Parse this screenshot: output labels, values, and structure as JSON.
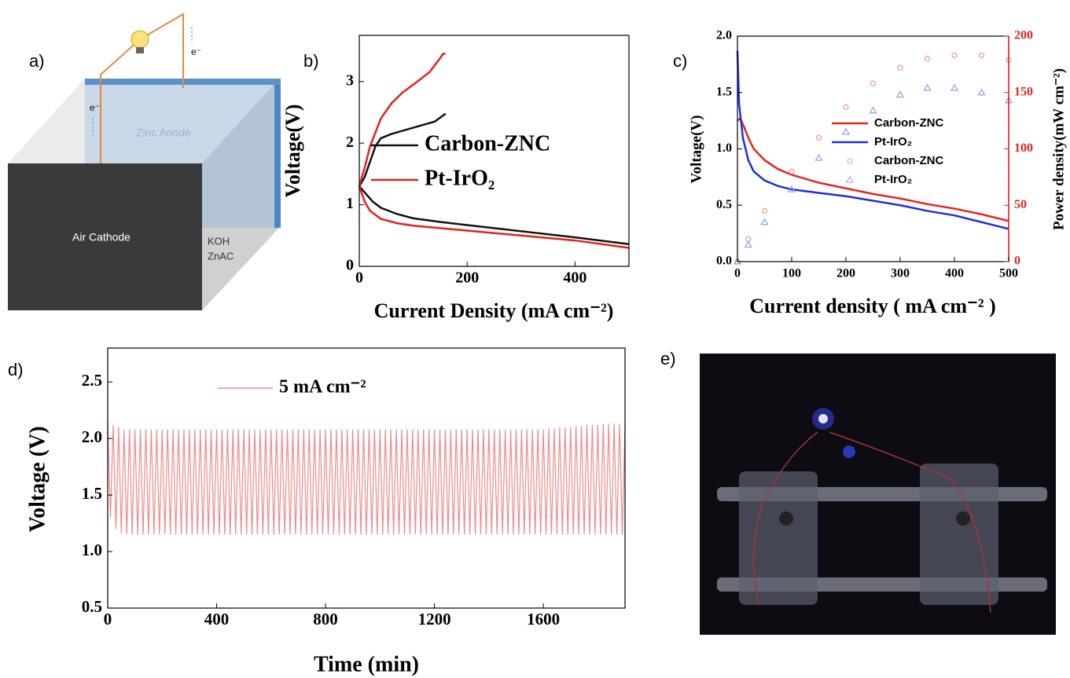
{
  "panels": {
    "a": "a)",
    "b": "b)",
    "c": "c)",
    "d": "d)",
    "e": "e)"
  },
  "diagram": {
    "anode": "Zinc Anode",
    "cathode": "Air Cathode",
    "electrolyte": [
      "KOH",
      "ZnAC"
    ],
    "electron_labels": [
      "e⁻",
      "e⁻"
    ]
  },
  "chart_data": [
    {
      "type": "line",
      "x_label": "Current Density (mA cm⁻²)",
      "y_label": "Voltage(V)",
      "xlim": [
        0,
        500
      ],
      "xticks": [
        0,
        200,
        400
      ],
      "ylim": [
        0,
        3.75
      ],
      "yticks": [
        0,
        1,
        2,
        3
      ],
      "series": [
        {
          "name": "Carbon-ZNC",
          "color": "#111111",
          "x": [
            0,
            10,
            25,
            40,
            70,
            100,
            150,
            200,
            300,
            400,
            500,
            null,
            0,
            10,
            20,
            30,
            40,
            60,
            100,
            140,
            160
          ],
          "values": [
            1.3,
            1.2,
            1.05,
            0.95,
            0.85,
            0.78,
            0.72,
            0.67,
            0.57,
            0.47,
            0.36,
            null,
            1.3,
            1.45,
            1.7,
            1.95,
            2.08,
            2.15,
            2.25,
            2.35,
            2.48
          ]
        },
        {
          "name": "Pt-IrO₂",
          "color": "#e3211c",
          "x": [
            0,
            10,
            20,
            40,
            70,
            100,
            200,
            300,
            400,
            500,
            null,
            0,
            10,
            20,
            40,
            60,
            80,
            100,
            130,
            150,
            155,
            160
          ],
          "values": [
            1.3,
            1.05,
            0.9,
            0.77,
            0.7,
            0.66,
            0.58,
            0.5,
            0.42,
            0.3,
            null,
            1.3,
            1.6,
            1.95,
            2.4,
            2.65,
            2.82,
            2.95,
            3.15,
            3.38,
            3.45,
            3.45
          ]
        }
      ]
    },
    {
      "type": "line",
      "x_label": "Current density ( mA cm⁻² )",
      "y_label": "Voltage(V)",
      "y2_label": "Power density(mW cm⁻²)",
      "y2_color": "#e8231f",
      "xlim": [
        0,
        500
      ],
      "xticks": [
        0,
        100,
        200,
        300,
        400,
        500
      ],
      "ylim": [
        0,
        2.0
      ],
      "yticks": [
        {
          "value": 0,
          "label": "0.0"
        },
        0.5,
        {
          "value": 1,
          "label": "1.0"
        },
        1.5,
        {
          "value": 2,
          "label": "2.0"
        }
      ],
      "y2lim": [
        0,
        200
      ],
      "y2ticks": [
        0,
        50,
        100,
        150,
        200
      ],
      "series": [
        {
          "name": "Carbon-ZNC",
          "color": "#e8231f",
          "x": [
            0,
            5,
            10,
            20,
            30,
            50,
            75,
            100,
            150,
            200,
            250,
            300,
            350,
            400,
            450,
            500
          ],
          "values": [
            1.25,
            1.27,
            1.22,
            1.1,
            1.0,
            0.9,
            0.82,
            0.77,
            0.7,
            0.65,
            0.6,
            0.56,
            0.51,
            0.47,
            0.42,
            0.36
          ]
        },
        {
          "name": "Pt-IrO₂",
          "color": "#1c2ee0",
          "x": [
            0,
            3,
            10,
            20,
            30,
            50,
            75,
            100,
            150,
            200,
            250,
            300,
            350,
            400,
            450,
            500
          ],
          "values": [
            1.87,
            1.4,
            1.1,
            0.9,
            0.8,
            0.72,
            0.67,
            0.64,
            0.61,
            0.58,
            0.54,
            0.5,
            0.45,
            0.41,
            0.35,
            0.29
          ]
        },
        {
          "name": "Carbon-ZNC",
          "color": "#f29a9a",
          "marker": "circle",
          "axis": "y2",
          "x": [
            0,
            20,
            50,
            100,
            150,
            200,
            250,
            300,
            350,
            400,
            450,
            500
          ],
          "values": [
            0,
            20,
            45,
            80,
            110,
            137,
            158,
            172,
            180,
            183,
            183,
            179
          ]
        },
        {
          "name": "Pt-IrO₂",
          "color": "#96a3ee",
          "marker": "triangle",
          "axis": "y2",
          "x": [
            0,
            20,
            50,
            100,
            150,
            200,
            250,
            300,
            350,
            400,
            450,
            500
          ],
          "values": [
            0,
            15,
            35,
            64,
            92,
            115,
            134,
            148,
            154,
            154,
            150,
            143
          ]
        }
      ]
    },
    {
      "type": "line",
      "x_label": "Time (min)",
      "y_label": "Voltage (V)",
      "xlim": [
        0,
        1900
      ],
      "xticks": [
        0,
        400,
        800,
        1200,
        1600
      ],
      "ylim": [
        0.5,
        2.8
      ],
      "yticks": [
        0.5,
        {
          "value": 1,
          "label": "1.0"
        },
        1.5,
        {
          "value": 2,
          "label": "2.0"
        },
        2.5
      ],
      "series": [
        {
          "name": "5 mA cm⁻²",
          "color": "#f08a8a",
          "x": [
            0,
            10,
            20,
            30,
            40,
            50,
            60,
            70,
            80,
            90,
            100,
            110,
            120,
            130,
            140,
            150,
            160,
            170,
            180,
            190,
            200,
            210,
            220,
            230,
            240,
            250,
            260,
            270,
            280,
            290,
            300,
            310,
            320,
            330,
            340,
            350,
            360,
            370,
            380,
            390,
            400,
            410,
            420,
            430,
            440,
            450,
            460,
            470,
            480,
            490,
            500,
            510,
            520,
            530,
            540,
            550,
            560,
            570,
            580,
            590,
            600,
            610,
            620,
            630,
            640,
            650,
            660,
            670,
            680,
            690,
            700,
            710,
            720,
            730,
            740,
            750,
            760,
            770,
            780,
            790,
            800,
            810,
            820,
            830,
            840,
            850,
            860,
            870,
            880,
            890,
            900,
            910,
            920,
            930,
            940,
            950,
            960,
            970,
            980,
            990,
            1000,
            1010,
            1020,
            1030,
            1040,
            1050,
            1060,
            1070,
            1080,
            1090,
            1100,
            1110,
            1120,
            1130,
            1140,
            1150,
            1160,
            1170,
            1180,
            1190,
            1200,
            1210,
            1220,
            1230,
            1240,
            1250,
            1260,
            1270,
            1280,
            1290,
            1300,
            1310,
            1320,
            1330,
            1340,
            1350,
            1360,
            1370,
            1380,
            1390,
            1400,
            1410,
            1420,
            1430,
            1440,
            1450,
            1460,
            1470,
            1480,
            1490,
            1500,
            1510,
            1520,
            1530,
            1540,
            1550,
            1560,
            1570,
            1580,
            1590,
            1600,
            1610,
            1620,
            1630,
            1640,
            1650,
            1660,
            1670,
            1680,
            1690,
            1700,
            1710,
            1720,
            1730,
            1740,
            1750,
            1760,
            1770,
            1780,
            1790,
            1800,
            1810,
            1820,
            1830,
            1840,
            1850,
            1860,
            1870,
            1880,
            1890,
            1900
          ],
          "values": [
            2.17,
            1.3,
            2.12,
            1.2,
            2.1,
            1.16,
            2.08,
            1.15,
            2.08,
            1.15,
            2.08,
            1.15,
            2.08,
            1.15,
            2.08,
            1.15,
            2.08,
            1.15,
            2.08,
            1.15,
            2.08,
            1.15,
            2.08,
            1.15,
            2.08,
            1.15,
            2.08,
            1.15,
            2.08,
            1.15,
            2.08,
            1.15,
            2.08,
            1.15,
            2.08,
            1.15,
            2.08,
            1.15,
            2.08,
            1.15,
            2.08,
            1.15,
            2.08,
            1.15,
            2.08,
            1.15,
            2.08,
            1.15,
            2.08,
            1.15,
            2.08,
            1.15,
            2.08,
            1.15,
            2.08,
            1.15,
            2.08,
            1.15,
            2.08,
            1.15,
            2.08,
            1.15,
            2.08,
            1.15,
            2.08,
            1.15,
            2.08,
            1.15,
            2.08,
            1.15,
            2.08,
            1.15,
            2.08,
            1.15,
            2.08,
            1.15,
            2.08,
            1.15,
            2.08,
            1.15,
            2.08,
            1.15,
            2.08,
            1.15,
            2.08,
            1.15,
            2.08,
            1.15,
            2.08,
            1.15,
            2.08,
            1.15,
            2.08,
            1.15,
            2.08,
            1.15,
            2.08,
            1.15,
            2.08,
            1.15,
            2.08,
            1.15,
            2.08,
            1.15,
            2.08,
            1.15,
            2.08,
            1.15,
            2.08,
            1.15,
            2.08,
            1.15,
            2.08,
            1.15,
            2.08,
            1.15,
            2.08,
            1.15,
            2.08,
            1.15,
            2.08,
            1.15,
            2.08,
            1.15,
            2.08,
            1.15,
            2.08,
            1.15,
            2.08,
            1.15,
            2.08,
            1.15,
            2.08,
            1.15,
            2.08,
            1.15,
            2.08,
            1.15,
            2.08,
            1.15,
            2.08,
            1.15,
            2.08,
            1.15,
            2.08,
            1.15,
            2.08,
            1.15,
            2.08,
            1.15,
            2.08,
            1.15,
            2.08,
            1.15,
            2.08,
            1.15,
            2.08,
            1.15,
            2.08,
            1.15,
            2.08,
            1.15,
            2.09,
            1.15,
            2.09,
            1.15,
            2.1,
            1.15,
            2.1,
            1.15,
            2.1,
            1.15,
            2.11,
            1.15,
            2.11,
            1.15,
            2.12,
            1.15,
            2.12,
            1.15,
            2.12,
            1.15,
            2.13,
            1.15,
            2.13,
            1.15,
            2.13,
            1.15,
            2.13,
            1.15,
            2.13
          ]
        }
      ]
    }
  ]
}
